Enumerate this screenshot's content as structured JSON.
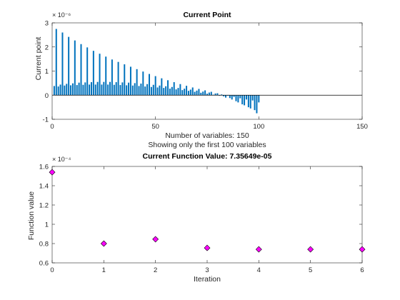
{
  "chart_data": [
    {
      "type": "bar",
      "title": "Current Point",
      "ylabel": "Current point",
      "xlabel_lines": [
        "Number of variables: 150",
        "Showing only the first 100 variables"
      ],
      "x_ticks": [
        "0",
        "50",
        "100",
        "150"
      ],
      "y_ticks": [
        "-1",
        "0",
        "1",
        "2",
        "3"
      ],
      "y_exponent": "× 10⁻⁶",
      "xlim": [
        0,
        150
      ],
      "ylim": [
        -1,
        3
      ],
      "bar_color": "#0072bd",
      "x": [
        1,
        2,
        3,
        4,
        5,
        6,
        7,
        8,
        9,
        10,
        11,
        12,
        13,
        14,
        15,
        16,
        17,
        18,
        19,
        20,
        21,
        22,
        23,
        24,
        25,
        26,
        27,
        28,
        29,
        30,
        31,
        32,
        33,
        34,
        35,
        36,
        37,
        38,
        39,
        40,
        41,
        42,
        43,
        44,
        45,
        46,
        47,
        48,
        49,
        50,
        51,
        52,
        53,
        54,
        55,
        56,
        57,
        58,
        59,
        60,
        61,
        62,
        63,
        64,
        65,
        66,
        67,
        68,
        69,
        70,
        71,
        72,
        73,
        74,
        75,
        76,
        77,
        78,
        79,
        80,
        81,
        82,
        83,
        84,
        85,
        86,
        87,
        88,
        89,
        90,
        91,
        92,
        93,
        94,
        95,
        96,
        97,
        98,
        99,
        100
      ],
      "values": [
        0.38,
        2.75,
        0.36,
        0.44,
        2.6,
        0.4,
        0.47,
        2.42,
        0.41,
        0.49,
        2.27,
        0.42,
        0.52,
        2.12,
        0.43,
        0.53,
        1.98,
        0.44,
        0.54,
        1.84,
        0.44,
        0.55,
        1.72,
        0.44,
        0.55,
        1.6,
        0.44,
        0.55,
        1.48,
        0.43,
        0.54,
        1.38,
        0.42,
        0.53,
        1.28,
        0.41,
        0.52,
        1.18,
        0.4,
        0.5,
        1.08,
        0.38,
        0.48,
        0.98,
        0.36,
        0.46,
        0.88,
        0.34,
        0.43,
        0.79,
        0.32,
        0.4,
        0.7,
        0.3,
        0.37,
        0.62,
        0.27,
        0.34,
        0.54,
        0.24,
        0.3,
        0.46,
        0.21,
        0.27,
        0.39,
        0.18,
        0.23,
        0.32,
        0.14,
        0.19,
        0.26,
        0.1,
        0.15,
        0.2,
        0.06,
        0.11,
        0.14,
        0.02,
        0.07,
        0.08,
        -0.02,
        0.03,
        -0.05,
        -0.1,
        -0.02,
        -0.12,
        -0.18,
        -0.07,
        -0.25,
        -0.3,
        -0.13,
        -0.38,
        -0.42,
        -0.18,
        -0.5,
        -0.55,
        -0.22,
        -0.62,
        -0.75,
        -0.3
      ]
    },
    {
      "type": "scatter",
      "title": "Current Function Value: 7.35649e-05",
      "xlabel": "Iteration",
      "ylabel": "Function value",
      "x_ticks": [
        "0",
        "1",
        "2",
        "3",
        "4",
        "5",
        "6"
      ],
      "y_ticks": [
        "0.6",
        "0.8",
        "1",
        "1.2",
        "1.4",
        "1.6"
      ],
      "y_exponent": "× 10⁻⁴",
      "xlim": [
        0,
        6
      ],
      "ylim": [
        0.6,
        1.6
      ],
      "marker_color": "#ff00ff",
      "x": [
        0,
        1,
        2,
        3,
        4,
        5,
        6
      ],
      "y": [
        1.54,
        0.8,
        0.845,
        0.755,
        0.74,
        0.74,
        0.74
      ]
    }
  ]
}
